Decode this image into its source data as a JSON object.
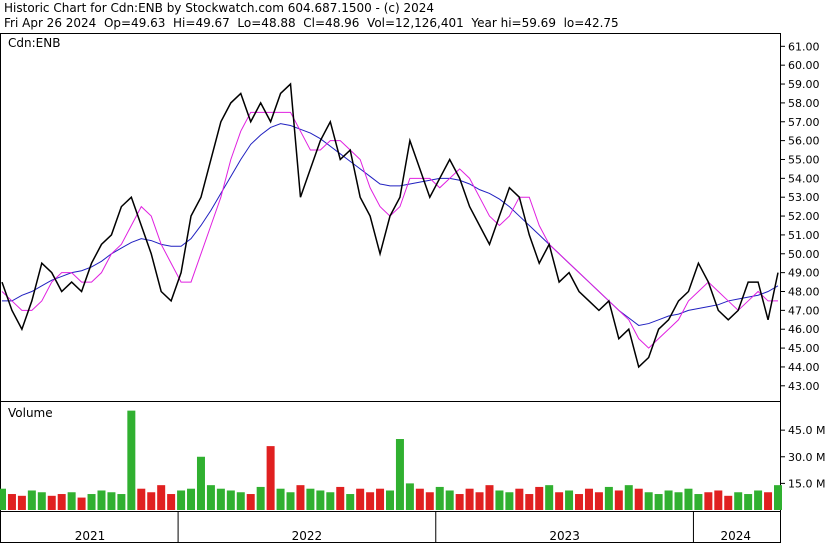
{
  "chart_data": {
    "type": "stock",
    "title": "Historic Chart for Cdn:ENB by Stockwatch.com 604.687.1500 - (c) 2024",
    "subtitle": "Fri Apr 26 2024  Op=49.63  Hi=49.67  Lo=48.88  Cl=48.96  Vol=12,126,401  Year hi=59.69  lo=42.75",
    "symbol": "Cdn:ENB",
    "volume_label": "Volume",
    "x": [
      0,
      1,
      2,
      3,
      4,
      5,
      6,
      7,
      8,
      9,
      10,
      11,
      12,
      13,
      14,
      15,
      16,
      17,
      18,
      19,
      20,
      21,
      22,
      23,
      24,
      25,
      26,
      27,
      28,
      29,
      30,
      31,
      32,
      33,
      34,
      35,
      36,
      37,
      38,
      39,
      40,
      41,
      42,
      43,
      44,
      45,
      46,
      47,
      48,
      49,
      50,
      51,
      52,
      53,
      54,
      55,
      56,
      57,
      58,
      59,
      60,
      61,
      62,
      63,
      64,
      65,
      66,
      67,
      68,
      69,
      70,
      71,
      72,
      73,
      74,
      75,
      76,
      77,
      78
    ],
    "xlim": [
      0,
      78
    ],
    "series": [
      {
        "name": "Close",
        "color": "#000000",
        "values": [
          48.5,
          47,
          46,
          47.5,
          49.5,
          49,
          48,
          48.5,
          48,
          49.5,
          50.5,
          51,
          52.5,
          53,
          51.5,
          50,
          48,
          47.5,
          49,
          52,
          53,
          55,
          57,
          58,
          58.5,
          57,
          58,
          57,
          58.5,
          59,
          53,
          54.5,
          56,
          57,
          55,
          55.5,
          53,
          52,
          50,
          52,
          53,
          56,
          54.5,
          53,
          54,
          55,
          54,
          52.5,
          51.5,
          50.5,
          52,
          53.5,
          53,
          51,
          49.5,
          50.5,
          48.5,
          49,
          48,
          47.5,
          47,
          47.5,
          45.5,
          46,
          44,
          44.5,
          46,
          46.5,
          47.5,
          48,
          49.5,
          48.5,
          47,
          46.5,
          47,
          48.5,
          48.5,
          46.5,
          49
        ]
      },
      {
        "name": "MA short",
        "color": "#e020e0",
        "values": [
          48,
          47.5,
          47,
          47,
          47.5,
          48.5,
          49,
          49,
          48.5,
          48.5,
          49,
          50,
          50.5,
          51.5,
          52.5,
          52,
          50.5,
          49.5,
          48.5,
          48.5,
          50,
          51.5,
          53,
          55,
          56.5,
          57.5,
          57.5,
          57.5,
          57.5,
          57.5,
          56.5,
          55.5,
          55.5,
          56,
          56,
          55.5,
          55,
          53.5,
          52.5,
          52,
          52.5,
          54,
          54,
          54,
          53.5,
          54,
          54.5,
          54,
          53,
          52,
          51.5,
          52,
          53,
          53,
          51.5,
          50.5,
          50,
          49.5,
          49,
          48.5,
          48,
          47.5,
          47,
          46.5,
          45.5,
          45,
          45.5,
          46,
          46.5,
          47.5,
          48,
          48.5,
          48,
          47.5,
          47,
          47.5,
          48,
          47.5,
          47.5
        ]
      },
      {
        "name": "MA long",
        "color": "#2020c0",
        "values": [
          47.5,
          47.5,
          47.8,
          48,
          48.3,
          48.6,
          48.8,
          49,
          49.1,
          49.3,
          49.6,
          50,
          50.3,
          50.6,
          50.8,
          50.7,
          50.5,
          50.4,
          50.4,
          50.8,
          51.5,
          52.3,
          53.2,
          54.1,
          55,
          55.8,
          56.3,
          56.7,
          56.9,
          56.8,
          56.6,
          56.4,
          56.1,
          55.7,
          55.3,
          54.9,
          54.5,
          54.1,
          53.7,
          53.6,
          53.6,
          53.7,
          53.8,
          53.9,
          54,
          54,
          53.9,
          53.7,
          53.4,
          53.2,
          52.9,
          52.5,
          52,
          51.5,
          51,
          50.5,
          50,
          49.5,
          49,
          48.5,
          48,
          47.5,
          47,
          46.6,
          46.2,
          46.3,
          46.5,
          46.7,
          46.8,
          47,
          47.1,
          47.2,
          47.3,
          47.5,
          47.6,
          47.7,
          47.8,
          48,
          48.3
        ]
      }
    ],
    "ylim": [
      42.3,
      61.6
    ],
    "yticks": [
      {
        "value": 43,
        "label": "43.00"
      },
      {
        "value": 44,
        "label": "44.00"
      },
      {
        "value": 45,
        "label": "45.00"
      },
      {
        "value": 46,
        "label": "46.00"
      },
      {
        "value": 47,
        "label": "47.00"
      },
      {
        "value": 48,
        "label": "48.00"
      },
      {
        "value": 49,
        "label": "49.00"
      },
      {
        "value": 50,
        "label": "50.00"
      },
      {
        "value": 51,
        "label": "51.00"
      },
      {
        "value": 52,
        "label": "52.00"
      },
      {
        "value": 53,
        "label": "53.00"
      },
      {
        "value": 54,
        "label": "54.00"
      },
      {
        "value": 55,
        "label": "55.00"
      },
      {
        "value": 56,
        "label": "56.00"
      },
      {
        "value": 57,
        "label": "57.00"
      },
      {
        "value": 58,
        "label": "58.00"
      },
      {
        "value": 59,
        "label": "59.00"
      },
      {
        "value": 60,
        "label": "60.00"
      },
      {
        "value": 61,
        "label": "61.00"
      }
    ],
    "volume": [
      12,
      9,
      8,
      11,
      10,
      8,
      9,
      10,
      7,
      9,
      11,
      10,
      9,
      56,
      12,
      10,
      14,
      9,
      11,
      12,
      30,
      14,
      12,
      11,
      10,
      9,
      13,
      36,
      12,
      10,
      14,
      12,
      11,
      10,
      13,
      9,
      12,
      10,
      12,
      11,
      40,
      15,
      12,
      10,
      13,
      11,
      9,
      12,
      10,
      14,
      11,
      10,
      12,
      9,
      13,
      14,
      10,
      11,
      9,
      12,
      10,
      13,
      11,
      14,
      12,
      10,
      9,
      11,
      10,
      12,
      9,
      10,
      11,
      8,
      10,
      9,
      11,
      10,
      14
    ],
    "up_color": "#30b030",
    "down_color": "#e02020",
    "vlim": [
      0,
      60.3
    ],
    "vticks": [
      {
        "value": 15,
        "label": "15.0 M"
      },
      {
        "value": 30,
        "label": "30.0 M"
      },
      {
        "value": 45,
        "label": "45.0 M"
      }
    ],
    "year_bounds": [
      17.7,
      43.6,
      69.5
    ],
    "years": [
      "2021",
      "2022",
      "2023",
      "2024"
    ]
  }
}
